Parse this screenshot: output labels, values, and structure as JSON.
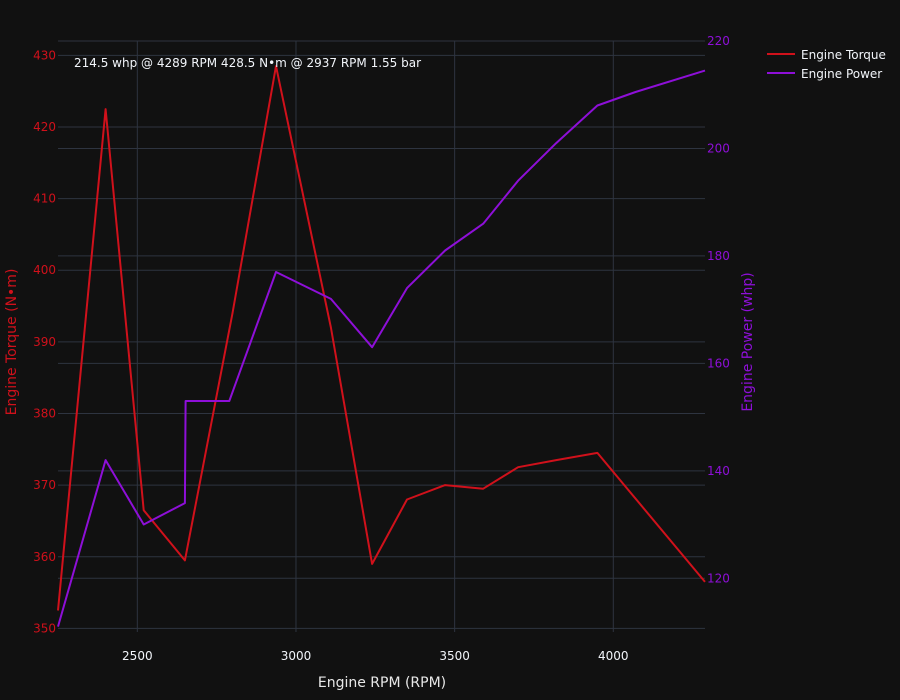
{
  "colors": {
    "background": "#111111",
    "grid": "#2e3440",
    "torque": "#d0111b",
    "power": "#8e0fd8",
    "text": "#f2f5fa",
    "axis_title": "#e8e8e8"
  },
  "chart_data": {
    "type": "line",
    "annotation": "214.5 whp @ 4289 RPM 428.5 N•m @ 2937 RPM 1.55 bar",
    "xlabel": "Engine RPM (RPM)",
    "ylabel_left": "Engine Torque (N•m)",
    "ylabel_right": "Engine Power (whp)",
    "xlim": [
      2250,
      4289
    ],
    "ylim_left": [
      349.5,
      432
    ],
    "ylim_right": [
      110,
      220
    ],
    "x_ticks": [
      2500,
      3000,
      3500,
      4000
    ],
    "y_left_ticks": [
      350,
      360,
      370,
      380,
      390,
      400,
      410,
      420,
      430
    ],
    "y_right_ticks": [
      120,
      140,
      160,
      180,
      200,
      220
    ],
    "grid": true,
    "legend_position": "top-right",
    "series": [
      {
        "name": "Engine Torque",
        "axis": "left",
        "x": [
          2250,
          2400,
          2520,
          2650,
          2800,
          2937,
          3110,
          3240,
          3350,
          3470,
          3590,
          3700,
          3820,
          3950,
          4289
        ],
        "y": [
          352.5,
          422.5,
          366.5,
          359.5,
          394,
          428.5,
          392,
          359,
          368,
          370,
          369.5,
          372.5,
          373.5,
          374.5,
          356.5
        ]
      },
      {
        "name": "Engine Power",
        "axis": "right",
        "x": [
          2250,
          2400,
          2520,
          2650,
          2652,
          2790,
          2937,
          3110,
          3240,
          3350,
          3470,
          3590,
          3700,
          3820,
          3950,
          4070,
          4289
        ],
        "y": [
          111,
          142,
          130,
          134,
          153,
          153,
          177,
          172,
          163,
          174,
          181,
          186,
          194,
          201,
          208,
          210.5,
          214.5
        ]
      }
    ]
  }
}
